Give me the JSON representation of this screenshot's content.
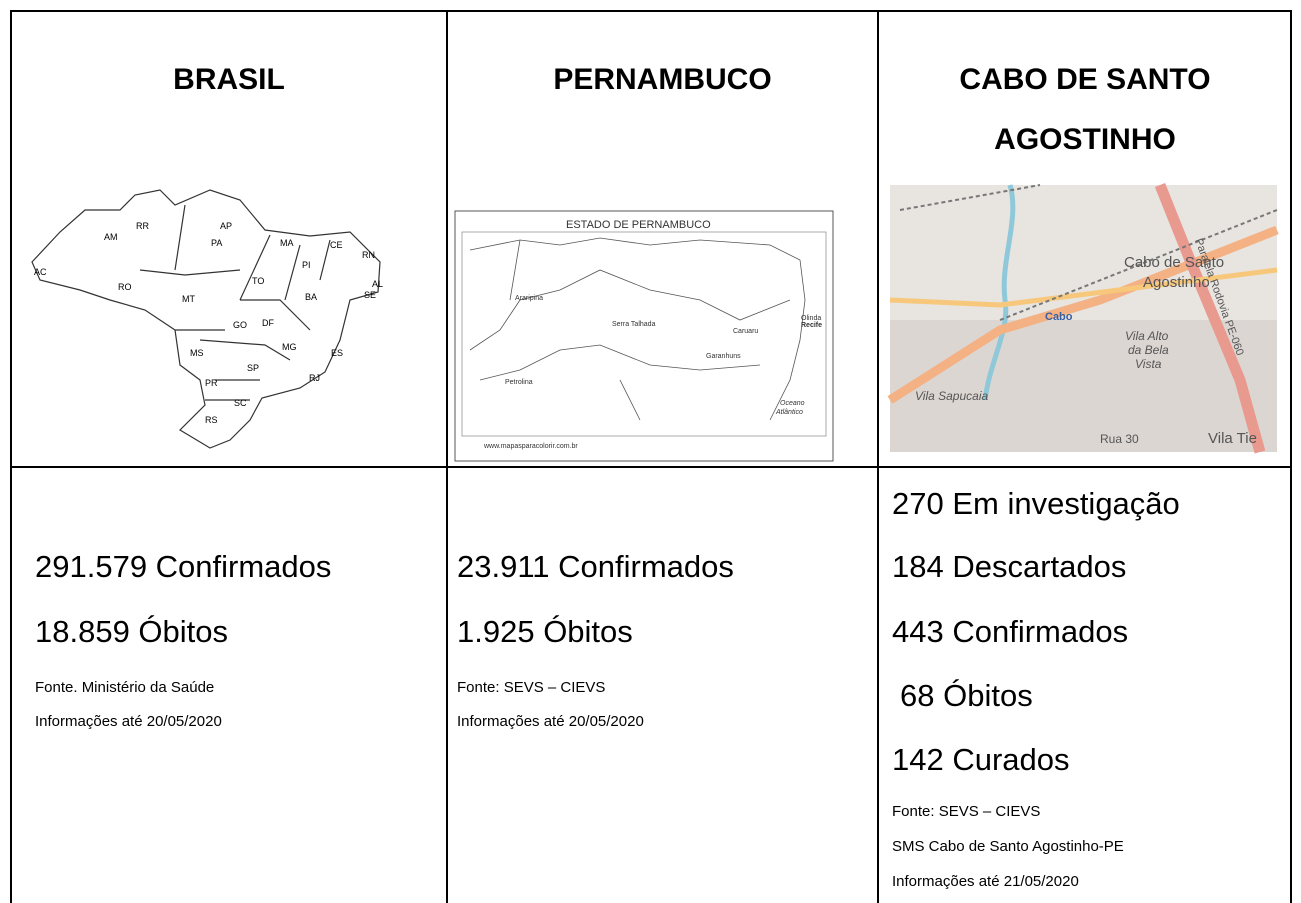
{
  "table": {
    "columns": [
      {
        "title": "BRASIL",
        "map_labels": [
          "RR",
          "AP",
          "AM",
          "PA",
          "MA",
          "CE",
          "PI",
          "AC",
          "RO",
          "TO",
          "BA",
          "MT",
          "GO",
          "DF",
          "MG",
          "MS",
          "ES",
          "SP",
          "RJ",
          "PR",
          "SC",
          "RS",
          "AL",
          "SE",
          "RN"
        ],
        "stats": [
          "291.579 Confirmados",
          "18.859 Óbitos"
        ],
        "notes": [
          "Fonte. Ministério da Saúde",
          "Informações até 20/05/2020"
        ]
      },
      {
        "title": "PERNAMBUCO",
        "map_labels": [
          "ESTADO DE PERNAMBUCO",
          "Araripina",
          "Serra Talhada",
          "Petrolina",
          "Caruaru",
          "Garanhuns",
          "Recife",
          "Olinda",
          "Oceano",
          "Atlântico",
          "www.mapasparacolorir.com.br"
        ],
        "stats": [
          "23.911 Confirmados",
          "1.925 Óbitos"
        ],
        "notes": [
          "Fonte: SEVS – CIEVS",
          "Informações até 20/05/2020"
        ]
      },
      {
        "title": "CABO DE SANTO AGOSTINHO",
        "map_labels": [
          "Cabo de Santo",
          "Agostinho",
          "Cabo",
          "Vila Alto",
          "da Bela",
          "Vista",
          "Vila Sapucaia",
          "Rua 30",
          "Vila Tie",
          "Paralela Rodovia PE-060"
        ],
        "stats": [
          "270 Em investigação",
          "184 Descartados",
          "443 Confirmados",
          "68 Óbitos",
          "142 Curados"
        ],
        "notes": [
          "Fonte: SEVS – CIEVS",
          "SMS Cabo de Santo Agostinho-PE",
          "Informações até 21/05/2020"
        ]
      }
    ]
  }
}
